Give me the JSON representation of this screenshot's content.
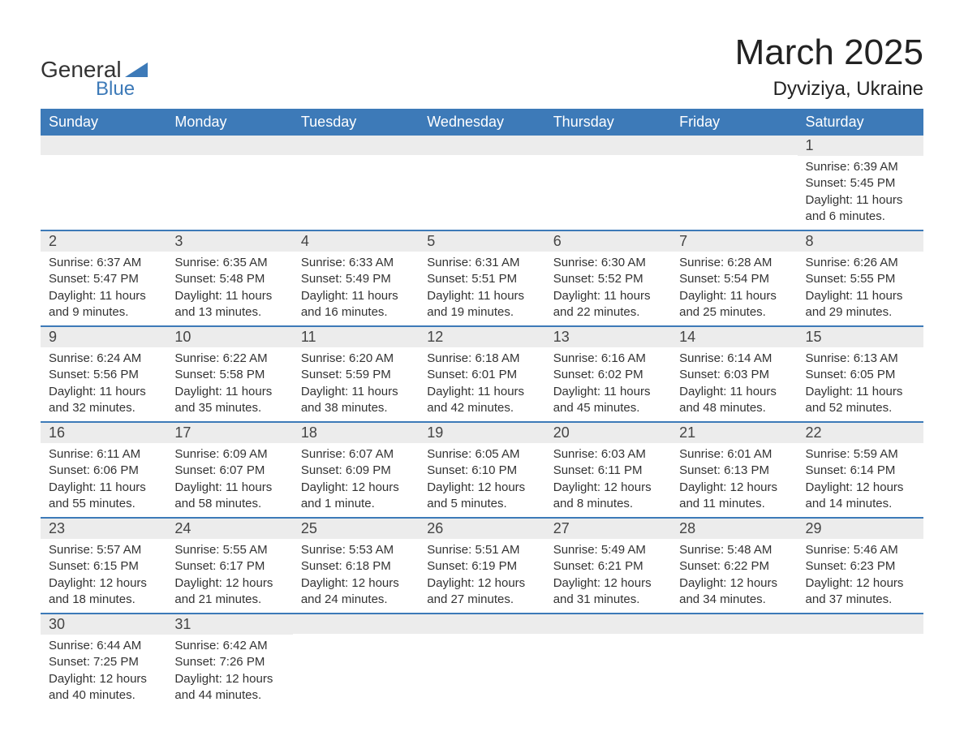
{
  "logo": {
    "text_general": "General",
    "text_blue": "Blue",
    "shape_color": "#3d7ab8"
  },
  "title": "March 2025",
  "location": "Dyviziya, Ukraine",
  "colors": {
    "header_bg": "#3d7ab8",
    "header_text": "#ffffff",
    "daynum_bg": "#ececec",
    "row_divider": "#3d7ab8",
    "body_text": "#333333",
    "title_text": "#222222"
  },
  "typography": {
    "title_fontsize": 44,
    "location_fontsize": 24,
    "header_fontsize": 18,
    "daynum_fontsize": 18,
    "body_fontsize": 15
  },
  "day_headers": [
    "Sunday",
    "Monday",
    "Tuesday",
    "Wednesday",
    "Thursday",
    "Friday",
    "Saturday"
  ],
  "weeks": [
    [
      null,
      null,
      null,
      null,
      null,
      null,
      {
        "n": "1",
        "sunrise": "Sunrise: 6:39 AM",
        "sunset": "Sunset: 5:45 PM",
        "daylight": "Daylight: 11 hours and 6 minutes."
      }
    ],
    [
      {
        "n": "2",
        "sunrise": "Sunrise: 6:37 AM",
        "sunset": "Sunset: 5:47 PM",
        "daylight": "Daylight: 11 hours and 9 minutes."
      },
      {
        "n": "3",
        "sunrise": "Sunrise: 6:35 AM",
        "sunset": "Sunset: 5:48 PM",
        "daylight": "Daylight: 11 hours and 13 minutes."
      },
      {
        "n": "4",
        "sunrise": "Sunrise: 6:33 AM",
        "sunset": "Sunset: 5:49 PM",
        "daylight": "Daylight: 11 hours and 16 minutes."
      },
      {
        "n": "5",
        "sunrise": "Sunrise: 6:31 AM",
        "sunset": "Sunset: 5:51 PM",
        "daylight": "Daylight: 11 hours and 19 minutes."
      },
      {
        "n": "6",
        "sunrise": "Sunrise: 6:30 AM",
        "sunset": "Sunset: 5:52 PM",
        "daylight": "Daylight: 11 hours and 22 minutes."
      },
      {
        "n": "7",
        "sunrise": "Sunrise: 6:28 AM",
        "sunset": "Sunset: 5:54 PM",
        "daylight": "Daylight: 11 hours and 25 minutes."
      },
      {
        "n": "8",
        "sunrise": "Sunrise: 6:26 AM",
        "sunset": "Sunset: 5:55 PM",
        "daylight": "Daylight: 11 hours and 29 minutes."
      }
    ],
    [
      {
        "n": "9",
        "sunrise": "Sunrise: 6:24 AM",
        "sunset": "Sunset: 5:56 PM",
        "daylight": "Daylight: 11 hours and 32 minutes."
      },
      {
        "n": "10",
        "sunrise": "Sunrise: 6:22 AM",
        "sunset": "Sunset: 5:58 PM",
        "daylight": "Daylight: 11 hours and 35 minutes."
      },
      {
        "n": "11",
        "sunrise": "Sunrise: 6:20 AM",
        "sunset": "Sunset: 5:59 PM",
        "daylight": "Daylight: 11 hours and 38 minutes."
      },
      {
        "n": "12",
        "sunrise": "Sunrise: 6:18 AM",
        "sunset": "Sunset: 6:01 PM",
        "daylight": "Daylight: 11 hours and 42 minutes."
      },
      {
        "n": "13",
        "sunrise": "Sunrise: 6:16 AM",
        "sunset": "Sunset: 6:02 PM",
        "daylight": "Daylight: 11 hours and 45 minutes."
      },
      {
        "n": "14",
        "sunrise": "Sunrise: 6:14 AM",
        "sunset": "Sunset: 6:03 PM",
        "daylight": "Daylight: 11 hours and 48 minutes."
      },
      {
        "n": "15",
        "sunrise": "Sunrise: 6:13 AM",
        "sunset": "Sunset: 6:05 PM",
        "daylight": "Daylight: 11 hours and 52 minutes."
      }
    ],
    [
      {
        "n": "16",
        "sunrise": "Sunrise: 6:11 AM",
        "sunset": "Sunset: 6:06 PM",
        "daylight": "Daylight: 11 hours and 55 minutes."
      },
      {
        "n": "17",
        "sunrise": "Sunrise: 6:09 AM",
        "sunset": "Sunset: 6:07 PM",
        "daylight": "Daylight: 11 hours and 58 minutes."
      },
      {
        "n": "18",
        "sunrise": "Sunrise: 6:07 AM",
        "sunset": "Sunset: 6:09 PM",
        "daylight": "Daylight: 12 hours and 1 minute."
      },
      {
        "n": "19",
        "sunrise": "Sunrise: 6:05 AM",
        "sunset": "Sunset: 6:10 PM",
        "daylight": "Daylight: 12 hours and 5 minutes."
      },
      {
        "n": "20",
        "sunrise": "Sunrise: 6:03 AM",
        "sunset": "Sunset: 6:11 PM",
        "daylight": "Daylight: 12 hours and 8 minutes."
      },
      {
        "n": "21",
        "sunrise": "Sunrise: 6:01 AM",
        "sunset": "Sunset: 6:13 PM",
        "daylight": "Daylight: 12 hours and 11 minutes."
      },
      {
        "n": "22",
        "sunrise": "Sunrise: 5:59 AM",
        "sunset": "Sunset: 6:14 PM",
        "daylight": "Daylight: 12 hours and 14 minutes."
      }
    ],
    [
      {
        "n": "23",
        "sunrise": "Sunrise: 5:57 AM",
        "sunset": "Sunset: 6:15 PM",
        "daylight": "Daylight: 12 hours and 18 minutes."
      },
      {
        "n": "24",
        "sunrise": "Sunrise: 5:55 AM",
        "sunset": "Sunset: 6:17 PM",
        "daylight": "Daylight: 12 hours and 21 minutes."
      },
      {
        "n": "25",
        "sunrise": "Sunrise: 5:53 AM",
        "sunset": "Sunset: 6:18 PM",
        "daylight": "Daylight: 12 hours and 24 minutes."
      },
      {
        "n": "26",
        "sunrise": "Sunrise: 5:51 AM",
        "sunset": "Sunset: 6:19 PM",
        "daylight": "Daylight: 12 hours and 27 minutes."
      },
      {
        "n": "27",
        "sunrise": "Sunrise: 5:49 AM",
        "sunset": "Sunset: 6:21 PM",
        "daylight": "Daylight: 12 hours and 31 minutes."
      },
      {
        "n": "28",
        "sunrise": "Sunrise: 5:48 AM",
        "sunset": "Sunset: 6:22 PM",
        "daylight": "Daylight: 12 hours and 34 minutes."
      },
      {
        "n": "29",
        "sunrise": "Sunrise: 5:46 AM",
        "sunset": "Sunset: 6:23 PM",
        "daylight": "Daylight: 12 hours and 37 minutes."
      }
    ],
    [
      {
        "n": "30",
        "sunrise": "Sunrise: 6:44 AM",
        "sunset": "Sunset: 7:25 PM",
        "daylight": "Daylight: 12 hours and 40 minutes."
      },
      {
        "n": "31",
        "sunrise": "Sunrise: 6:42 AM",
        "sunset": "Sunset: 7:26 PM",
        "daylight": "Daylight: 12 hours and 44 minutes."
      },
      null,
      null,
      null,
      null,
      null
    ]
  ]
}
